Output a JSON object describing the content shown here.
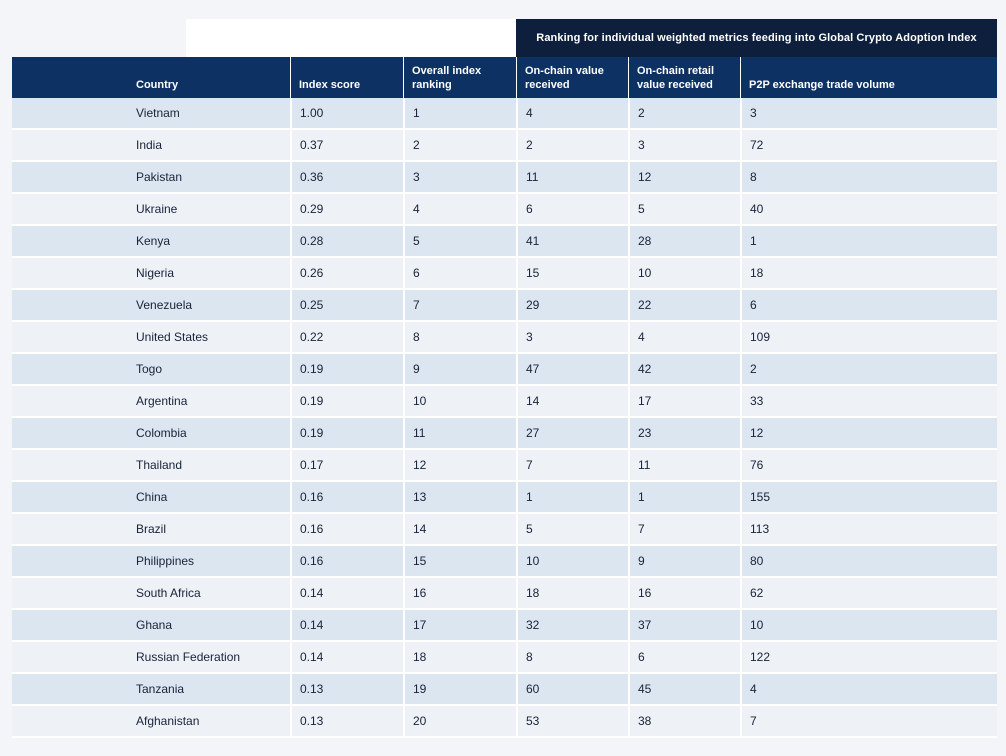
{
  "chart_data": {
    "type": "table",
    "group_header": "Ranking for individual weighted metrics feeding into Global Crypto Adoption Index",
    "columns": [
      "Country",
      "Index score",
      "Overall index ranking",
      "On-chain value received",
      "On-chain retail value received",
      "P2P exchange trade volume"
    ],
    "rows": [
      [
        "Vietnam",
        "1.00",
        "1",
        "4",
        "2",
        "3"
      ],
      [
        "India",
        "0.37",
        "2",
        "2",
        "3",
        "72"
      ],
      [
        "Pakistan",
        "0.36",
        "3",
        "11",
        "12",
        "8"
      ],
      [
        "Ukraine",
        "0.29",
        "4",
        "6",
        "5",
        "40"
      ],
      [
        "Kenya",
        "0.28",
        "5",
        "41",
        "28",
        "1"
      ],
      [
        "Nigeria",
        "0.26",
        "6",
        "15",
        "10",
        "18"
      ],
      [
        "Venezuela",
        "0.25",
        "7",
        "29",
        "22",
        "6"
      ],
      [
        "United States",
        "0.22",
        "8",
        "3",
        "4",
        "109"
      ],
      [
        "Togo",
        "0.19",
        "9",
        "47",
        "42",
        "2"
      ],
      [
        "Argentina",
        "0.19",
        "10",
        "14",
        "17",
        "33"
      ],
      [
        "Colombia",
        "0.19",
        "11",
        "27",
        "23",
        "12"
      ],
      [
        "Thailand",
        "0.17",
        "12",
        "7",
        "11",
        "76"
      ],
      [
        "China",
        "0.16",
        "13",
        "1",
        "1",
        "155"
      ],
      [
        "Brazil",
        "0.16",
        "14",
        "5",
        "7",
        "113"
      ],
      [
        "Philippines",
        "0.16",
        "15",
        "10",
        "9",
        "80"
      ],
      [
        "South Africa",
        "0.14",
        "16",
        "18",
        "16",
        "62"
      ],
      [
        "Ghana",
        "0.14",
        "17",
        "32",
        "37",
        "10"
      ],
      [
        "Russian Federation",
        "0.14",
        "18",
        "8",
        "6",
        "122"
      ],
      [
        "Tanzania",
        "0.13",
        "19",
        "60",
        "45",
        "4"
      ],
      [
        "Afghanistan",
        "0.13",
        "20",
        "53",
        "38",
        "7"
      ]
    ]
  },
  "colors": {
    "header_navy": "#0d3163",
    "group_header_dark": "#0d1f3c",
    "row_band_a": "#dbe6f0",
    "row_band_b": "#eef2f6"
  }
}
